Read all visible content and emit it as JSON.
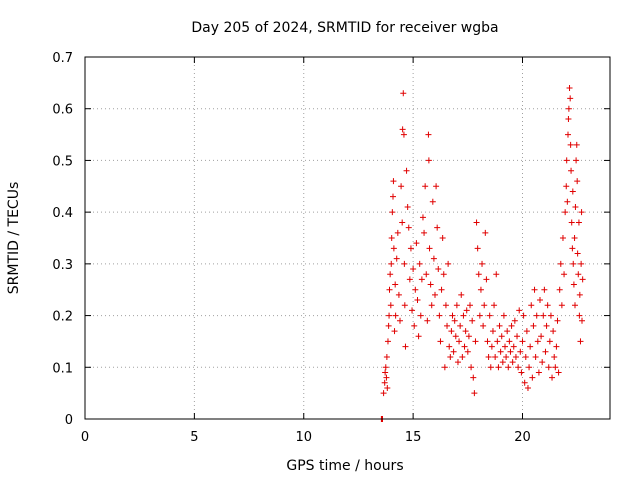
{
  "chart_data": {
    "type": "scatter",
    "title": "Day 205 of 2024, SRMTID for receiver wgba",
    "xlabel": "GPS time / hours",
    "ylabel": "SRMTID / TECUs",
    "xlim": [
      0,
      24
    ],
    "ylim": [
      0,
      0.7
    ],
    "xticks": [
      0,
      5,
      10,
      15,
      20
    ],
    "yticks": [
      0,
      0.1,
      0.2,
      0.3,
      0.4,
      0.5,
      0.6,
      0.7
    ],
    "xtick_labels": [
      "0",
      "5",
      "10",
      "15",
      "20"
    ],
    "ytick_labels": [
      "0",
      "0.1",
      "0.2",
      "0.3",
      "0.4",
      "0.5",
      "0.6",
      "0.7"
    ],
    "grid": true,
    "marker": "plus",
    "color": "#e00000",
    "points": [
      [
        13.55,
        0.0
      ],
      [
        13.6,
        0.0
      ],
      [
        13.58,
        0.0
      ],
      [
        13.65,
        0.05
      ],
      [
        13.7,
        0.07
      ],
      [
        13.72,
        0.09
      ],
      [
        13.75,
        0.1
      ],
      [
        13.78,
        0.08
      ],
      [
        13.8,
        0.12
      ],
      [
        13.82,
        0.06
      ],
      [
        13.85,
        0.15
      ],
      [
        13.88,
        0.18
      ],
      [
        13.9,
        0.2
      ],
      [
        13.92,
        0.25
      ],
      [
        13.95,
        0.28
      ],
      [
        13.98,
        0.22
      ],
      [
        14.0,
        0.3
      ],
      [
        14.02,
        0.35
      ],
      [
        14.05,
        0.4
      ],
      [
        14.08,
        0.43
      ],
      [
        14.1,
        0.46
      ],
      [
        14.12,
        0.33
      ],
      [
        14.15,
        0.17
      ],
      [
        14.18,
        0.26
      ],
      [
        14.2,
        0.2
      ],
      [
        14.25,
        0.31
      ],
      [
        14.3,
        0.36
      ],
      [
        14.35,
        0.24
      ],
      [
        14.4,
        0.19
      ],
      [
        14.45,
        0.45
      ],
      [
        14.5,
        0.38
      ],
      [
        14.52,
        0.56
      ],
      [
        14.55,
        0.63
      ],
      [
        14.58,
        0.55
      ],
      [
        14.6,
        0.3
      ],
      [
        14.62,
        0.22
      ],
      [
        14.65,
        0.14
      ],
      [
        14.7,
        0.48
      ],
      [
        14.75,
        0.41
      ],
      [
        14.8,
        0.37
      ],
      [
        14.85,
        0.27
      ],
      [
        14.9,
        0.33
      ],
      [
        14.95,
        0.21
      ],
      [
        15.0,
        0.29
      ],
      [
        15.05,
        0.18
      ],
      [
        15.1,
        0.25
      ],
      [
        15.15,
        0.34
      ],
      [
        15.2,
        0.23
      ],
      [
        15.25,
        0.16
      ],
      [
        15.3,
        0.3
      ],
      [
        15.35,
        0.2
      ],
      [
        15.4,
        0.27
      ],
      [
        15.45,
        0.39
      ],
      [
        15.5,
        0.36
      ],
      [
        15.55,
        0.45
      ],
      [
        15.6,
        0.28
      ],
      [
        15.65,
        0.19
      ],
      [
        15.7,
        0.55
      ],
      [
        15.72,
        0.5
      ],
      [
        15.75,
        0.33
      ],
      [
        15.8,
        0.26
      ],
      [
        15.85,
        0.22
      ],
      [
        15.9,
        0.42
      ],
      [
        15.95,
        0.31
      ],
      [
        16.0,
        0.24
      ],
      [
        16.05,
        0.45
      ],
      [
        16.1,
        0.37
      ],
      [
        16.15,
        0.29
      ],
      [
        16.2,
        0.2
      ],
      [
        16.25,
        0.15
      ],
      [
        16.3,
        0.25
      ],
      [
        16.35,
        0.35
      ],
      [
        16.4,
        0.28
      ],
      [
        16.45,
        0.1
      ],
      [
        16.5,
        0.22
      ],
      [
        16.55,
        0.18
      ],
      [
        16.6,
        0.3
      ],
      [
        16.65,
        0.14
      ],
      [
        16.7,
        0.12
      ],
      [
        16.75,
        0.17
      ],
      [
        16.8,
        0.2
      ],
      [
        16.85,
        0.13
      ],
      [
        16.9,
        0.19
      ],
      [
        16.95,
        0.16
      ],
      [
        17.0,
        0.22
      ],
      [
        17.05,
        0.11
      ],
      [
        17.1,
        0.15
      ],
      [
        17.15,
        0.18
      ],
      [
        17.2,
        0.24
      ],
      [
        17.25,
        0.12
      ],
      [
        17.3,
        0.2
      ],
      [
        17.35,
        0.14
      ],
      [
        17.4,
        0.17
      ],
      [
        17.45,
        0.21
      ],
      [
        17.5,
        0.13
      ],
      [
        17.55,
        0.16
      ],
      [
        17.6,
        0.22
      ],
      [
        17.65,
        0.1
      ],
      [
        17.7,
        0.19
      ],
      [
        17.75,
        0.08
      ],
      [
        17.8,
        0.05
      ],
      [
        17.85,
        0.15
      ],
      [
        17.9,
        0.38
      ],
      [
        17.95,
        0.33
      ],
      [
        18.0,
        0.28
      ],
      [
        18.05,
        0.2
      ],
      [
        18.1,
        0.25
      ],
      [
        18.15,
        0.3
      ],
      [
        18.2,
        0.18
      ],
      [
        18.25,
        0.22
      ],
      [
        18.3,
        0.36
      ],
      [
        18.35,
        0.27
      ],
      [
        18.4,
        0.15
      ],
      [
        18.45,
        0.12
      ],
      [
        18.5,
        0.2
      ],
      [
        18.55,
        0.1
      ],
      [
        18.6,
        0.14
      ],
      [
        18.65,
        0.17
      ],
      [
        18.7,
        0.22
      ],
      [
        18.75,
        0.12
      ],
      [
        18.8,
        0.28
      ],
      [
        18.85,
        0.15
      ],
      [
        18.9,
        0.1
      ],
      [
        18.95,
        0.18
      ],
      [
        19.0,
        0.13
      ],
      [
        19.05,
        0.16
      ],
      [
        19.1,
        0.11
      ],
      [
        19.15,
        0.2
      ],
      [
        19.2,
        0.14
      ],
      [
        19.25,
        0.12
      ],
      [
        19.3,
        0.17
      ],
      [
        19.35,
        0.1
      ],
      [
        19.4,
        0.15
      ],
      [
        19.45,
        0.13
      ],
      [
        19.5,
        0.18
      ],
      [
        19.55,
        0.11
      ],
      [
        19.6,
        0.14
      ],
      [
        19.65,
        0.19
      ],
      [
        19.7,
        0.12
      ],
      [
        19.75,
        0.16
      ],
      [
        19.8,
        0.1
      ],
      [
        19.85,
        0.21
      ],
      [
        19.9,
        0.13
      ],
      [
        19.95,
        0.09
      ],
      [
        20.0,
        0.15
      ],
      [
        20.05,
        0.2
      ],
      [
        20.1,
        0.07
      ],
      [
        20.15,
        0.12
      ],
      [
        20.2,
        0.17
      ],
      [
        20.25,
        0.06
      ],
      [
        20.3,
        0.1
      ],
      [
        20.35,
        0.14
      ],
      [
        20.4,
        0.22
      ],
      [
        20.45,
        0.08
      ],
      [
        20.5,
        0.18
      ],
      [
        20.55,
        0.25
      ],
      [
        20.6,
        0.12
      ],
      [
        20.65,
        0.2
      ],
      [
        20.7,
        0.15
      ],
      [
        20.75,
        0.09
      ],
      [
        20.8,
        0.23
      ],
      [
        20.85,
        0.16
      ],
      [
        20.9,
        0.11
      ],
      [
        20.95,
        0.2
      ],
      [
        21.0,
        0.25
      ],
      [
        21.05,
        0.13
      ],
      [
        21.1,
        0.18
      ],
      [
        21.15,
        0.22
      ],
      [
        21.2,
        0.1
      ],
      [
        21.25,
        0.15
      ],
      [
        21.3,
        0.2
      ],
      [
        21.35,
        0.08
      ],
      [
        21.4,
        0.17
      ],
      [
        21.45,
        0.12
      ],
      [
        21.5,
        0.1
      ],
      [
        21.55,
        0.14
      ],
      [
        21.6,
        0.19
      ],
      [
        21.65,
        0.09
      ],
      [
        21.7,
        0.25
      ],
      [
        21.75,
        0.3
      ],
      [
        21.8,
        0.22
      ],
      [
        21.85,
        0.35
      ],
      [
        21.9,
        0.28
      ],
      [
        21.95,
        0.4
      ],
      [
        22.0,
        0.45
      ],
      [
        22.02,
        0.5
      ],
      [
        22.05,
        0.42
      ],
      [
        22.08,
        0.55
      ],
      [
        22.1,
        0.58
      ],
      [
        22.12,
        0.6
      ],
      [
        22.15,
        0.64
      ],
      [
        22.18,
        0.62
      ],
      [
        22.2,
        0.53
      ],
      [
        22.22,
        0.48
      ],
      [
        22.25,
        0.38
      ],
      [
        22.28,
        0.33
      ],
      [
        22.3,
        0.44
      ],
      [
        22.32,
        0.3
      ],
      [
        22.35,
        0.26
      ],
      [
        22.38,
        0.35
      ],
      [
        22.4,
        0.22
      ],
      [
        22.42,
        0.41
      ],
      [
        22.45,
        0.5
      ],
      [
        22.48,
        0.53
      ],
      [
        22.5,
        0.46
      ],
      [
        22.52,
        0.32
      ],
      [
        22.55,
        0.28
      ],
      [
        22.58,
        0.38
      ],
      [
        22.6,
        0.2
      ],
      [
        22.62,
        0.24
      ],
      [
        22.65,
        0.15
      ],
      [
        22.68,
        0.3
      ],
      [
        22.7,
        0.4
      ],
      [
        22.72,
        0.19
      ],
      [
        22.75,
        0.27
      ]
    ]
  }
}
